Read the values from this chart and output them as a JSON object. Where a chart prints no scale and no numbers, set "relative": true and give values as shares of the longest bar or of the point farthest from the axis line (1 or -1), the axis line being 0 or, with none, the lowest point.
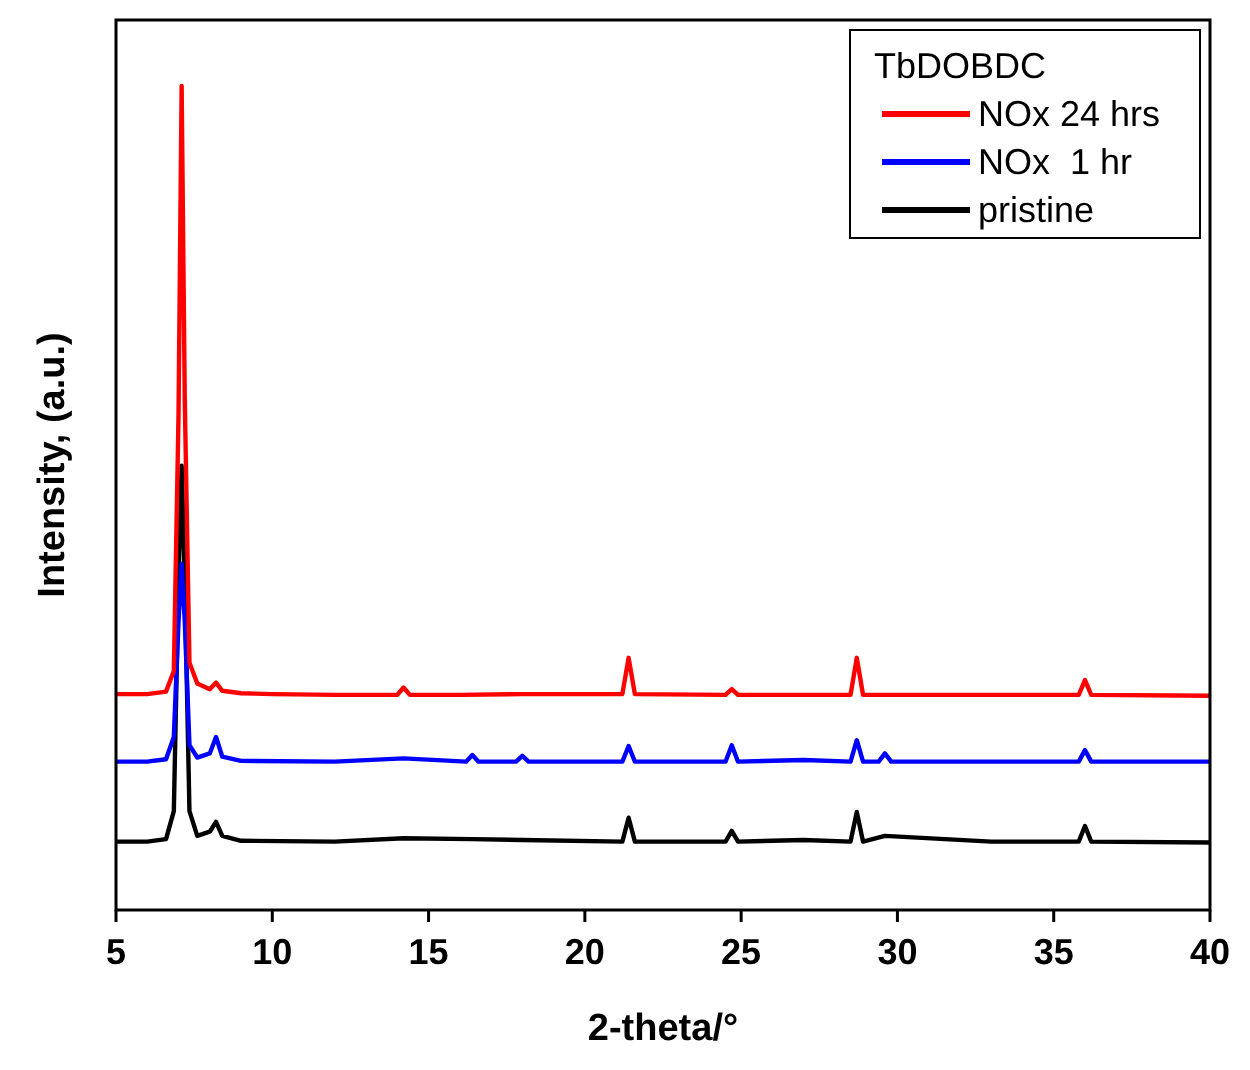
{
  "chart_data": {
    "type": "line",
    "relative": true,
    "xlabel": "2-theta/°",
    "ylabel": "Intensity, (a.u.)",
    "legend_title": "TbDOBDC",
    "legend": "top right",
    "xlim": [
      5,
      40
    ],
    "xticks": [
      5,
      10,
      15,
      20,
      25,
      30,
      35,
      40
    ],
    "series": [
      {
        "name": "NOx 24 hrs",
        "color": "#ff0000",
        "x": [
          5,
          6,
          6.6,
          6.85,
          7.0,
          7.1,
          7.2,
          7.35,
          7.6,
          8.0,
          8.2,
          8.4,
          9,
          10,
          12,
          14.0,
          14.2,
          14.4,
          16,
          18,
          21.2,
          21.4,
          21.6,
          24.5,
          24.7,
          24.9,
          28.5,
          28.7,
          28.9,
          33,
          35.8,
          36.0,
          36.2,
          40
        ],
        "values": [
          0.262,
          0.262,
          0.265,
          0.29,
          0.6,
          1.0,
          0.62,
          0.3,
          0.275,
          0.268,
          0.276,
          0.266,
          0.263,
          0.262,
          0.261,
          0.261,
          0.27,
          0.261,
          0.261,
          0.262,
          0.262,
          0.306,
          0.262,
          0.261,
          0.268,
          0.261,
          0.261,
          0.306,
          0.261,
          0.261,
          0.261,
          0.279,
          0.261,
          0.26
        ]
      },
      {
        "name": "NOx  1 hr",
        "color": "#0000ff",
        "x": [
          5,
          6,
          6.6,
          6.85,
          7.0,
          7.1,
          7.2,
          7.35,
          7.6,
          8.0,
          8.2,
          8.4,
          9,
          12,
          14.2,
          16.2,
          16.4,
          16.6,
          17.8,
          18.0,
          18.2,
          21.2,
          21.4,
          21.6,
          24.5,
          24.7,
          24.9,
          27.0,
          28.5,
          28.7,
          28.9,
          29.4,
          29.6,
          29.8,
          35.8,
          36.0,
          36.2,
          40
        ],
        "values": [
          0.18,
          0.18,
          0.183,
          0.21,
          0.35,
          0.42,
          0.35,
          0.2,
          0.185,
          0.19,
          0.21,
          0.186,
          0.181,
          0.18,
          0.184,
          0.18,
          0.188,
          0.18,
          0.18,
          0.187,
          0.18,
          0.18,
          0.199,
          0.18,
          0.18,
          0.2,
          0.18,
          0.182,
          0.18,
          0.206,
          0.18,
          0.18,
          0.19,
          0.18,
          0.18,
          0.194,
          0.18,
          0.18
        ]
      },
      {
        "name": "pristine",
        "color": "#000000",
        "x": [
          5,
          6,
          6.6,
          6.85,
          7.0,
          7.1,
          7.2,
          7.35,
          7.6,
          8.0,
          8.2,
          8.4,
          9,
          12,
          14.2,
          16.4,
          18,
          21.2,
          21.4,
          21.6,
          24.5,
          24.7,
          24.9,
          27,
          28.5,
          28.7,
          28.9,
          29.6,
          33,
          35.8,
          36.0,
          36.2,
          40
        ],
        "values": [
          0.083,
          0.083,
          0.086,
          0.12,
          0.4,
          0.539,
          0.4,
          0.12,
          0.09,
          0.095,
          0.107,
          0.09,
          0.084,
          0.083,
          0.087,
          0.086,
          0.085,
          0.083,
          0.112,
          0.083,
          0.083,
          0.096,
          0.083,
          0.085,
          0.083,
          0.119,
          0.083,
          0.09,
          0.083,
          0.083,
          0.102,
          0.083,
          0.082
        ]
      }
    ]
  }
}
